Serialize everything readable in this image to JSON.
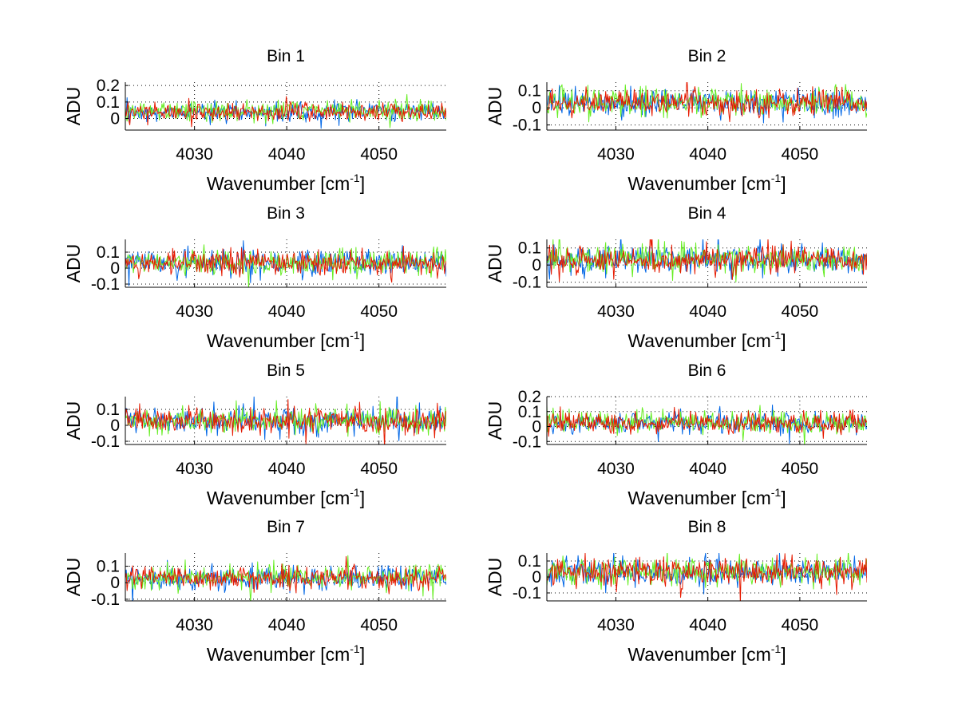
{
  "chart_data": [
    {
      "type": "line",
      "title": "Bin 1",
      "xlabel": "Wavenumber [cm",
      "xlabel_sup": "-1",
      "xlabel_end": "]",
      "ylabel": "ADU",
      "xlim": [
        4022.5,
        4057.3
      ],
      "ylim": [
        -0.07,
        0.22
      ],
      "xticks": [
        4030,
        4040,
        4050
      ],
      "yticks": [
        0,
        0.1,
        0.2
      ],
      "ytick_labels": [
        "0",
        "0.1",
        "0.2"
      ],
      "grid": true,
      "series": [
        {
          "color": "#0066e6",
          "mean": 0.04,
          "amp": 0.028,
          "seed": 11
        },
        {
          "color": "#66ee22",
          "mean": 0.05,
          "amp": 0.03,
          "seed": 12
        },
        {
          "color": "#e61a00",
          "mean": 0.04,
          "amp": 0.028,
          "seed": 13
        }
      ]
    },
    {
      "type": "line",
      "title": "Bin 2",
      "xlabel": "Wavenumber [cm",
      "xlabel_sup": "-1",
      "xlabel_end": "]",
      "ylabel": "ADU",
      "xlim": [
        4022.5,
        4057.3
      ],
      "ylim": [
        -0.13,
        0.15
      ],
      "xticks": [
        4030,
        4040,
        4050
      ],
      "yticks": [
        -0.1,
        0,
        0.1
      ],
      "ytick_labels": [
        "-0.1",
        "0",
        "0.1"
      ],
      "grid": true,
      "series": [
        {
          "color": "#0066e6",
          "mean": 0.03,
          "amp": 0.04,
          "seed": 21
        },
        {
          "color": "#66ee22",
          "mean": 0.035,
          "amp": 0.04,
          "seed": 22
        },
        {
          "color": "#e61a00",
          "mean": 0.03,
          "amp": 0.04,
          "seed": 23
        }
      ]
    },
    {
      "type": "line",
      "title": "Bin 3",
      "xlabel": "Wavenumber [cm",
      "xlabel_sup": "-1",
      "xlabel_end": "]",
      "ylabel": "ADU",
      "xlim": [
        4022.5,
        4057.3
      ],
      "ylim": [
        -0.12,
        0.18
      ],
      "xticks": [
        4030,
        4040,
        4050
      ],
      "yticks": [
        -0.1,
        0,
        0.1
      ],
      "ytick_labels": [
        "-0.1",
        "0",
        "0.1"
      ],
      "grid": true,
      "series": [
        {
          "color": "#0066e6",
          "mean": 0.03,
          "amp": 0.04,
          "seed": 31
        },
        {
          "color": "#66ee22",
          "mean": 0.035,
          "amp": 0.035,
          "seed": 32
        },
        {
          "color": "#e61a00",
          "mean": 0.03,
          "amp": 0.04,
          "seed": 33
        }
      ]
    },
    {
      "type": "line",
      "title": "Bin 4",
      "xlabel": "Wavenumber [cm",
      "xlabel_sup": "-1",
      "xlabel_end": "]",
      "ylabel": "ADU",
      "xlim": [
        4022.5,
        4057.3
      ],
      "ylim": [
        -0.13,
        0.15
      ],
      "xticks": [
        4030,
        4040,
        4050
      ],
      "yticks": [
        -0.1,
        0,
        0.1
      ],
      "ytick_labels": [
        "-0.1",
        "0",
        "0.1"
      ],
      "grid": true,
      "series": [
        {
          "color": "#0066e6",
          "mean": 0.03,
          "amp": 0.04,
          "seed": 41
        },
        {
          "color": "#66ee22",
          "mean": 0.035,
          "amp": 0.04,
          "seed": 42
        },
        {
          "color": "#e61a00",
          "mean": 0.03,
          "amp": 0.04,
          "seed": 43
        }
      ]
    },
    {
      "type": "line",
      "title": "Bin 5",
      "xlabel": "Wavenumber [cm",
      "xlabel_sup": "-1",
      "xlabel_end": "]",
      "ylabel": "ADU",
      "xlim": [
        4022.5,
        4057.3
      ],
      "ylim": [
        -0.12,
        0.18
      ],
      "xticks": [
        4030,
        4040,
        4050
      ],
      "yticks": [
        -0.1,
        0,
        0.1
      ],
      "ytick_labels": [
        "-0.1",
        "0",
        "0.1"
      ],
      "grid": true,
      "series": [
        {
          "color": "#0066e6",
          "mean": 0.03,
          "amp": 0.04,
          "seed": 51
        },
        {
          "color": "#66ee22",
          "mean": 0.035,
          "amp": 0.035,
          "seed": 52
        },
        {
          "color": "#e61a00",
          "mean": 0.03,
          "amp": 0.04,
          "seed": 53
        }
      ]
    },
    {
      "type": "line",
      "title": "Bin 6",
      "xlabel": "Wavenumber [cm",
      "xlabel_sup": "-1",
      "xlabel_end": "]",
      "ylabel": "ADU",
      "xlim": [
        4022.5,
        4057.3
      ],
      "ylim": [
        -0.12,
        0.2
      ],
      "xticks": [
        4030,
        4040,
        4050
      ],
      "yticks": [
        -0.1,
        0,
        0.1,
        0.2
      ],
      "ytick_labels": [
        "-0.1",
        "0",
        "0.1",
        "0.2"
      ],
      "grid": true,
      "series": [
        {
          "color": "#0066e6",
          "mean": 0.025,
          "amp": 0.035,
          "seed": 61
        },
        {
          "color": "#66ee22",
          "mean": 0.03,
          "amp": 0.035,
          "seed": 62
        },
        {
          "color": "#e61a00",
          "mean": 0.025,
          "amp": 0.035,
          "seed": 63
        }
      ]
    },
    {
      "type": "line",
      "title": "Bin 7",
      "xlabel": "Wavenumber [cm",
      "xlabel_sup": "-1",
      "xlabel_end": "]",
      "ylabel": "ADU",
      "xlim": [
        4022.5,
        4057.3
      ],
      "ylim": [
        -0.11,
        0.18
      ],
      "xticks": [
        4030,
        4040,
        4050
      ],
      "yticks": [
        -0.1,
        0,
        0.1
      ],
      "ytick_labels": [
        "-0.1",
        "0",
        "0.1"
      ],
      "grid": true,
      "series": [
        {
          "color": "#0066e6",
          "mean": 0.03,
          "amp": 0.035,
          "seed": 71
        },
        {
          "color": "#66ee22",
          "mean": 0.035,
          "amp": 0.035,
          "seed": 72
        },
        {
          "color": "#e61a00",
          "mean": 0.03,
          "amp": 0.035,
          "seed": 73
        }
      ]
    },
    {
      "type": "line",
      "title": "Bin 8",
      "xlabel": "Wavenumber [cm",
      "xlabel_sup": "-1",
      "xlabel_end": "]",
      "ylabel": "ADU",
      "xlim": [
        4022.5,
        4057.3
      ],
      "ylim": [
        -0.15,
        0.15
      ],
      "xticks": [
        4030,
        4040,
        4050
      ],
      "yticks": [
        -0.1,
        0,
        0.1
      ],
      "ytick_labels": [
        "-0.1",
        "0",
        "0.1"
      ],
      "grid": true,
      "series": [
        {
          "color": "#0066e6",
          "mean": 0.03,
          "amp": 0.045,
          "seed": 81
        },
        {
          "color": "#66ee22",
          "mean": 0.035,
          "amp": 0.04,
          "seed": 82
        },
        {
          "color": "#e61a00",
          "mean": 0.03,
          "amp": 0.045,
          "seed": 83
        }
      ]
    }
  ]
}
